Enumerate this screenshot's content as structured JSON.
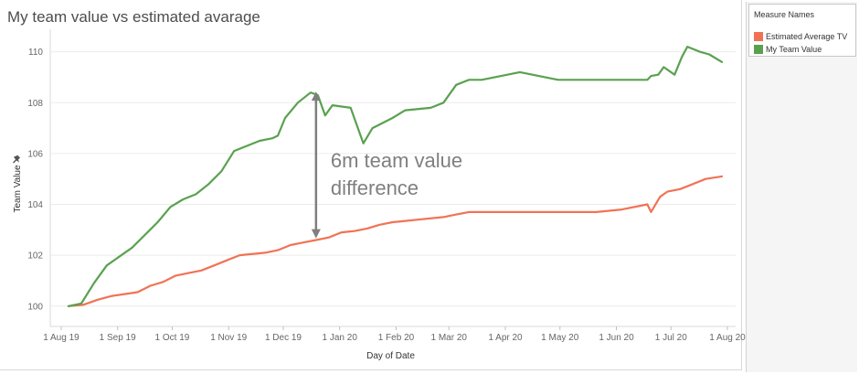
{
  "chart_data": {
    "type": "line",
    "title": "My team value vs estimated avarage",
    "xlabel": "Day of Date",
    "ylabel": "Team Value",
    "ylabel_icon": "pin-icon",
    "ylim": [
      99.2,
      110.6
    ],
    "xlim": [
      "2019-07-26",
      "2020-08-03"
    ],
    "y_ticks": [
      100,
      102,
      104,
      106,
      108,
      110
    ],
    "x_ticks": [
      {
        "date": "2019-08-01",
        "label": "1 Aug 19"
      },
      {
        "date": "2019-09-01",
        "label": "1 Sep 19"
      },
      {
        "date": "2019-10-01",
        "label": "1 Oct 19"
      },
      {
        "date": "2019-11-01",
        "label": "1 Nov 19"
      },
      {
        "date": "2019-12-01",
        "label": "1 Dec 19"
      },
      {
        "date": "2020-01-01",
        "label": "1 Jan 20"
      },
      {
        "date": "2020-02-01",
        "label": "1 Feb 20"
      },
      {
        "date": "2020-03-01",
        "label": "1 Mar 20"
      },
      {
        "date": "2020-04-01",
        "label": "1 Apr 20"
      },
      {
        "date": "2020-05-01",
        "label": "1 May 20"
      },
      {
        "date": "2020-06-01",
        "label": "1 Jun 20"
      },
      {
        "date": "2020-07-01",
        "label": "1 Jul 20"
      },
      {
        "date": "2020-08-01",
        "label": "1 Aug 20"
      }
    ],
    "grid": true,
    "legend": {
      "title": "Measure Names",
      "position": "right"
    },
    "series": [
      {
        "name": "Estimated Average TV",
        "color": "#f07355",
        "points": [
          [
            "2019-08-05",
            100.0
          ],
          [
            "2019-08-13",
            100.05
          ],
          [
            "2019-08-21",
            100.25
          ],
          [
            "2019-08-29",
            100.4
          ],
          [
            "2019-09-12",
            100.55
          ],
          [
            "2019-09-19",
            100.8
          ],
          [
            "2019-09-26",
            100.95
          ],
          [
            "2019-10-03",
            101.2
          ],
          [
            "2019-10-10",
            101.3
          ],
          [
            "2019-10-17",
            101.4
          ],
          [
            "2019-10-24",
            101.6
          ],
          [
            "2019-10-31",
            101.8
          ],
          [
            "2019-11-07",
            102.0
          ],
          [
            "2019-11-21",
            102.1
          ],
          [
            "2019-11-28",
            102.2
          ],
          [
            "2019-12-05",
            102.4
          ],
          [
            "2019-12-12",
            102.5
          ],
          [
            "2019-12-19",
            102.6
          ],
          [
            "2019-12-26",
            102.7
          ],
          [
            "2020-01-02",
            102.9
          ],
          [
            "2020-01-09",
            102.95
          ],
          [
            "2020-01-16",
            103.05
          ],
          [
            "2020-01-23",
            103.2
          ],
          [
            "2020-01-30",
            103.3
          ],
          [
            "2020-02-06",
            103.35
          ],
          [
            "2020-02-13",
            103.4
          ],
          [
            "2020-02-27",
            103.5
          ],
          [
            "2020-03-05",
            103.6
          ],
          [
            "2020-03-12",
            103.7
          ],
          [
            "2020-03-26",
            103.7
          ],
          [
            "2020-04-09",
            103.7
          ],
          [
            "2020-04-23",
            103.7
          ],
          [
            "2020-05-07",
            103.7
          ],
          [
            "2020-05-21",
            103.7
          ],
          [
            "2020-06-04",
            103.8
          ],
          [
            "2020-06-18",
            104.0
          ],
          [
            "2020-06-20",
            103.7
          ],
          [
            "2020-06-25",
            104.3
          ],
          [
            "2020-06-29",
            104.5
          ],
          [
            "2020-07-06",
            104.6
          ],
          [
            "2020-07-13",
            104.8
          ],
          [
            "2020-07-20",
            105.0
          ],
          [
            "2020-07-29",
            105.1
          ]
        ]
      },
      {
        "name": "My Team Value",
        "color": "#59a14f",
        "points": [
          [
            "2019-08-05",
            100.0
          ],
          [
            "2019-08-12",
            100.1
          ],
          [
            "2019-08-19",
            100.9
          ],
          [
            "2019-08-26",
            101.6
          ],
          [
            "2019-09-09",
            102.3
          ],
          [
            "2019-09-16",
            102.8
          ],
          [
            "2019-09-23",
            103.3
          ],
          [
            "2019-09-30",
            103.9
          ],
          [
            "2019-10-07",
            104.2
          ],
          [
            "2019-10-14",
            104.4
          ],
          [
            "2019-10-21",
            104.8
          ],
          [
            "2019-10-28",
            105.3
          ],
          [
            "2019-11-04",
            106.1
          ],
          [
            "2019-11-18",
            106.5
          ],
          [
            "2019-11-25",
            106.6
          ],
          [
            "2019-11-28",
            106.7
          ],
          [
            "2019-12-02",
            107.4
          ],
          [
            "2019-12-09",
            108.0
          ],
          [
            "2019-12-16",
            108.4
          ],
          [
            "2019-12-20",
            108.3
          ],
          [
            "2019-12-24",
            107.5
          ],
          [
            "2019-12-28",
            107.9
          ],
          [
            "2020-01-07",
            107.8
          ],
          [
            "2020-01-14",
            106.4
          ],
          [
            "2020-01-19",
            107.0
          ],
          [
            "2020-01-30",
            107.4
          ],
          [
            "2020-02-06",
            107.7
          ],
          [
            "2020-02-20",
            107.8
          ],
          [
            "2020-02-27",
            108.0
          ],
          [
            "2020-03-05",
            108.7
          ],
          [
            "2020-03-12",
            108.9
          ],
          [
            "2020-03-19",
            108.9
          ],
          [
            "2020-04-09",
            109.2
          ],
          [
            "2020-04-30",
            108.9
          ],
          [
            "2020-05-14",
            108.9
          ],
          [
            "2020-06-04",
            108.9
          ],
          [
            "2020-06-18",
            108.9
          ],
          [
            "2020-06-20",
            109.05
          ],
          [
            "2020-06-24",
            109.1
          ],
          [
            "2020-06-27",
            109.4
          ],
          [
            "2020-07-03",
            109.1
          ],
          [
            "2020-07-07",
            109.8
          ],
          [
            "2020-07-10",
            110.2
          ],
          [
            "2020-07-17",
            110.0
          ],
          [
            "2020-07-22",
            109.9
          ],
          [
            "2020-07-29",
            109.6
          ]
        ]
      }
    ],
    "annotations": [
      {
        "text_lines": [
          "6m team value",
          "difference"
        ],
        "arrow_date": "2019-12-19",
        "arrow_from": 102.7,
        "arrow_to": 108.4,
        "color": "#7f7f7f"
      }
    ]
  }
}
